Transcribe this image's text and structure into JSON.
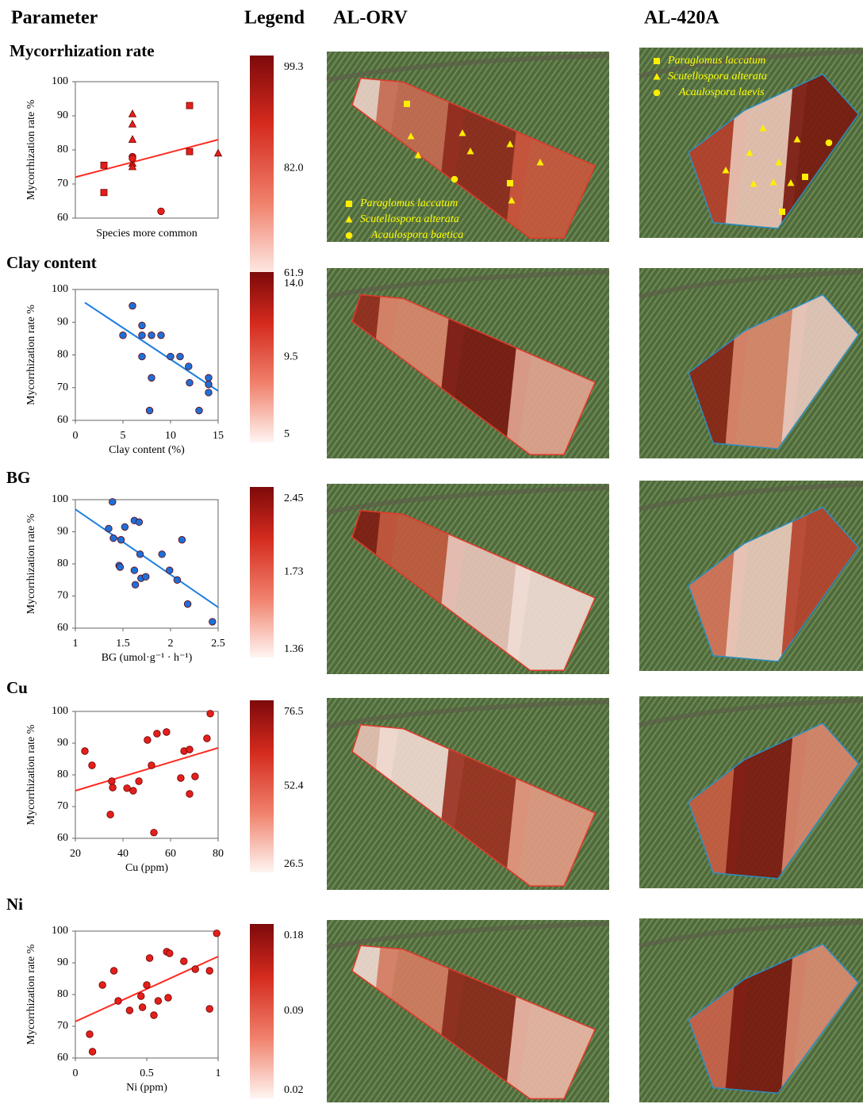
{
  "headers": {
    "parameter": "Parameter",
    "legend": "Legend",
    "site1": "AL-ORV",
    "site2": "AL-420A"
  },
  "map_legend": {
    "site1": [
      "Paraglomus laccatum",
      "Scutellospora alterata",
      "Acaulospora baetica"
    ],
    "site2": [
      "Paraglomus laccatum",
      "Scutellospora alterata",
      "Acaulospora laevis"
    ]
  },
  "chart_data": [
    {
      "type": "scatter",
      "title": "Mycorrhization rate",
      "xlabel": "Species more common",
      "ylabel": "Mycorrhization rate %",
      "xlim": [
        0,
        5
      ],
      "ylim": [
        60,
        100
      ],
      "yticks": [
        60,
        70,
        80,
        90,
        100
      ],
      "color": "#e41f1b",
      "scale_labels": [
        "99.3",
        "82.0",
        "61.9"
      ],
      "series": [
        {
          "marker": "square",
          "x": [
            1,
            1,
            4,
            4
          ],
          "values": [
            75.5,
            67.5,
            93,
            79.5
          ]
        },
        {
          "marker": "triangle",
          "x": [
            2,
            2,
            2,
            2,
            2,
            5
          ],
          "values": [
            90.5,
            87.5,
            83,
            76,
            75,
            79
          ]
        },
        {
          "marker": "circle",
          "x": [
            2,
            2,
            3
          ],
          "values": [
            78,
            77.5,
            62
          ]
        }
      ],
      "trend": {
        "x": [
          0,
          5
        ],
        "values": [
          72,
          83
        ]
      }
    },
    {
      "type": "scatter",
      "title": "Clay content",
      "xlabel": "Clay content (%)",
      "ylabel": "Mycorrhization rate %",
      "xlim": [
        0,
        15
      ],
      "xticks": [
        0,
        5,
        10,
        15
      ],
      "ylim": [
        60,
        100
      ],
      "yticks": [
        60,
        70,
        80,
        90,
        100
      ],
      "color": "#1f6fd6",
      "scale_labels": [
        "14.0",
        "9.5",
        "5"
      ],
      "series": [
        {
          "marker": "circle",
          "x": [
            5,
            6,
            7,
            7,
            7,
            8,
            8,
            7.8,
            9,
            10,
            11,
            11.9,
            12,
            13,
            14,
            14,
            14
          ],
          "values": [
            86,
            95,
            89,
            86,
            79.5,
            86,
            73,
            63,
            86,
            79.5,
            79.5,
            76.5,
            71.5,
            63,
            73,
            71,
            68.5
          ]
        }
      ],
      "trend": {
        "x": [
          1,
          15
        ],
        "values": [
          96,
          69
        ]
      }
    },
    {
      "type": "scatter",
      "title": "BG",
      "xlabel": "BG (umol·g⁻¹ · h⁻¹)",
      "ylabel": "Mycorrhization rate %",
      "xlim": [
        1,
        2.5
      ],
      "xticks": [
        1,
        1.5,
        2,
        2.5
      ],
      "ylim": [
        60,
        100
      ],
      "yticks": [
        60,
        70,
        80,
        90,
        100
      ],
      "color": "#1f6fd6",
      "scale_labels": [
        "2.45",
        "1.73",
        "1.36"
      ],
      "series": [
        {
          "marker": "circle",
          "x": [
            1.39,
            1.35,
            1.4,
            1.48,
            1.52,
            1.46,
            1.47,
            1.62,
            1.67,
            1.68,
            1.62,
            1.63,
            1.69,
            1.74,
            1.91,
            1.99,
            2.07,
            2.12,
            2.18,
            2.44
          ],
          "values": [
            99.3,
            91,
            88,
            87.5,
            91.5,
            79.5,
            79,
            93.5,
            93,
            83,
            78,
            73.5,
            75.5,
            76,
            83,
            78,
            75,
            87.5,
            67.5,
            62
          ]
        }
      ],
      "trend": {
        "x": [
          1,
          2.5
        ],
        "values": [
          97,
          66.5
        ]
      }
    },
    {
      "type": "scatter",
      "title": "Cu",
      "xlabel": "Cu (ppm)",
      "ylabel": "Mycorrhization rate %",
      "xlim": [
        20,
        80
      ],
      "xticks": [
        20,
        40,
        60,
        80
      ],
      "ylim": [
        60,
        100
      ],
      "yticks": [
        60,
        70,
        80,
        90,
        100
      ],
      "color": "#e41f1b",
      "scale_labels": [
        "76.5",
        "52.4",
        "26.5"
      ],
      "series": [
        {
          "marker": "circle",
          "x": [
            76.7,
            75.3,
            58.3,
            54.3,
            50.3,
            24,
            27,
            52,
            65.7,
            68,
            64.3,
            70.3,
            68,
            35.3,
            35.7,
            41.7,
            44.3,
            46.7,
            34.7,
            53
          ],
          "values": [
            99.3,
            91.5,
            93.5,
            93,
            91,
            87.5,
            83,
            83,
            87.5,
            88,
            79,
            79.5,
            74,
            78,
            76,
            75.8,
            75,
            78,
            67.5,
            61.8
          ]
        }
      ],
      "trend": {
        "x": [
          20,
          80
        ],
        "values": [
          75,
          88.5
        ]
      }
    },
    {
      "type": "scatter",
      "title": "Ni",
      "xlabel": "Ni (ppm)",
      "ylabel": "Mycorrhization rate %",
      "xlim": [
        0,
        1
      ],
      "xticks": [
        0,
        0.5,
        1
      ],
      "ylim": [
        60,
        100
      ],
      "yticks": [
        60,
        70,
        80,
        90,
        100
      ],
      "color": "#e41f1b",
      "scale_labels": [
        "0.18",
        "0.09",
        "0.02"
      ],
      "series": [
        {
          "marker": "circle",
          "x": [
            0.19,
            0.27,
            0.3,
            0.38,
            0.46,
            0.47,
            0.5,
            0.52,
            0.55,
            0.58,
            0.64,
            0.66,
            0.65,
            0.76,
            0.84,
            0.94,
            0.94,
            0.99,
            0.1,
            0.12
          ],
          "values": [
            83,
            87.5,
            78,
            75,
            79.5,
            76,
            83,
            91.5,
            73.5,
            78,
            93.5,
            93,
            79,
            90.5,
            88,
            87.5,
            75.5,
            99.3,
            67.5,
            62
          ]
        }
      ],
      "trend": {
        "x": [
          0,
          1
        ],
        "values": [
          71.5,
          92
        ]
      }
    }
  ]
}
